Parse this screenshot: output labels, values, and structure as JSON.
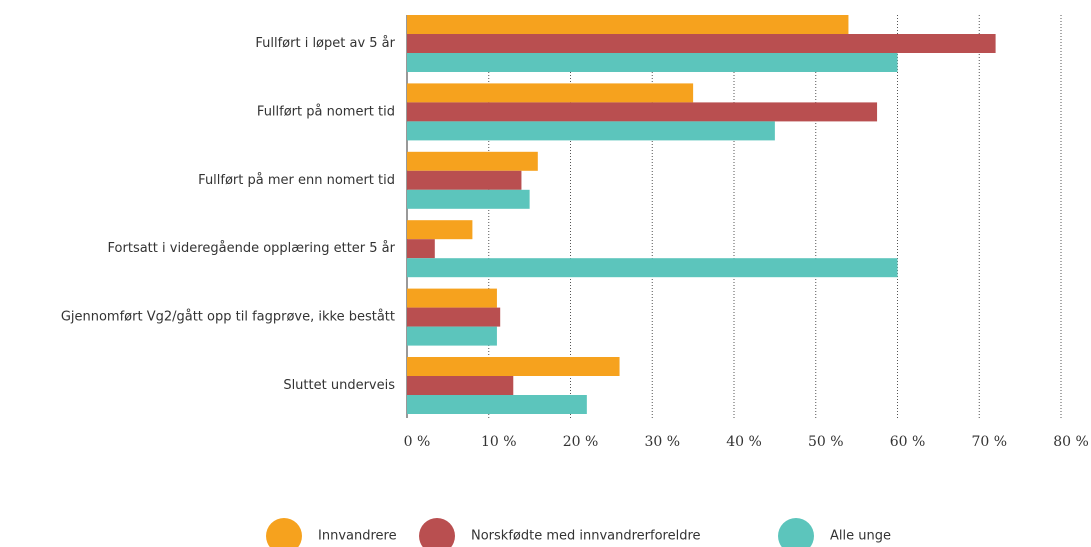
{
  "chart_data": {
    "type": "bar",
    "orientation": "horizontal",
    "categories": [
      "Fullført i løpet av 5 år",
      "Fullført på nomert tid",
      "Fullført på mer enn nomert tid",
      "Fortsatt i videregående opplæring etter 5 år",
      "Gjennomført Vg2/gått opp til fagprøve, ikke bestått",
      "Sluttet underveis"
    ],
    "series": [
      {
        "name": "Innvandrere",
        "color": "#f6a21e",
        "values": [
          54,
          35,
          16,
          8,
          11,
          26
        ]
      },
      {
        "name": "Norskfødte med innvandrerforeldre",
        "color": "#b94f50",
        "values": [
          72,
          57.5,
          14,
          3.4,
          11.4,
          13
        ]
      },
      {
        "name": "Alle unge",
        "color": "#5cc5bc",
        "values": [
          60,
          45,
          15,
          60,
          11,
          22
        ]
      }
    ],
    "xlim": [
      0,
      80
    ],
    "xticks": [
      {
        "value": 0,
        "label": "0 %"
      },
      {
        "value": 10,
        "label": "10 %"
      },
      {
        "value": 20,
        "label": "20 %"
      },
      {
        "value": 30,
        "label": "30 %"
      },
      {
        "value": 40,
        "label": "40 %"
      },
      {
        "value": 50,
        "label": "50 %"
      },
      {
        "value": 60,
        "label": "60 %"
      },
      {
        "value": 70,
        "label": "70 %"
      },
      {
        "value": 80,
        "label": "80 %"
      }
    ],
    "grid": true,
    "legend": "bottom"
  }
}
